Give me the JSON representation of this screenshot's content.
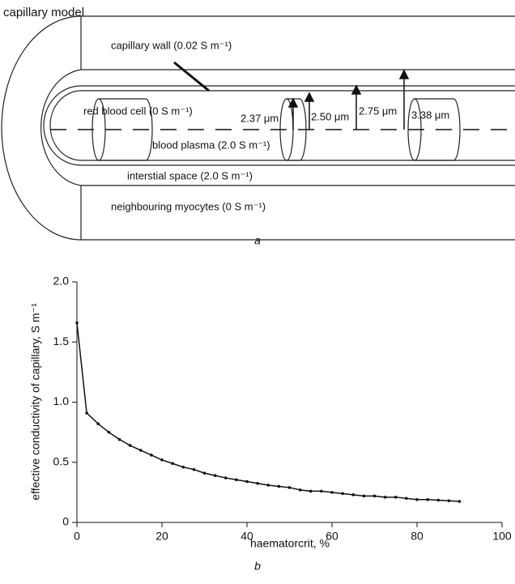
{
  "diagram": {
    "title": "capillary model",
    "labels": {
      "wall": "capillary wall (0.02 S m⁻¹)",
      "rbc": "red blood cell (0 S m⁻¹)",
      "plasma": "blood plasma (2.0 S m⁻¹)",
      "interstitial": "interstial space (2.0 S m⁻¹)",
      "myocytes": "neighbouring myocytes (0 S m⁻¹)"
    },
    "radii": [
      "2.37 μm",
      "2.50 μm",
      "2.75 μm",
      "3.38 μm"
    ],
    "caption": "a"
  },
  "chart_data": {
    "type": "line",
    "x_label": "haematorcrit, %",
    "y_label": "effective conductivity of capillary, S m⁻¹",
    "caption": "b",
    "x": [
      0,
      2.3,
      5,
      7.5,
      10,
      12.5,
      15,
      17.5,
      20,
      22.5,
      25,
      27.5,
      30,
      32.5,
      35,
      37.5,
      40,
      42.5,
      45,
      47.5,
      50,
      52.5,
      55,
      57.5,
      60,
      62.5,
      65,
      67.5,
      70,
      72.5,
      75,
      77.5,
      80,
      82.5,
      85,
      87.5,
      90
    ],
    "values": [
      1.66,
      0.91,
      0.82,
      0.75,
      0.69,
      0.64,
      0.6,
      0.56,
      0.52,
      0.49,
      0.46,
      0.44,
      0.41,
      0.39,
      0.37,
      0.355,
      0.34,
      0.325,
      0.31,
      0.3,
      0.29,
      0.27,
      0.26,
      0.26,
      0.25,
      0.24,
      0.23,
      0.22,
      0.22,
      0.21,
      0.21,
      0.2,
      0.19,
      0.19,
      0.185,
      0.18,
      0.175
    ],
    "color": "#111111",
    "xlim": [
      0,
      100
    ],
    "xticks": [
      0,
      20,
      40,
      60,
      80,
      100
    ],
    "ylim": [
      0,
      2
    ],
    "yticks": [
      0,
      0.5,
      {
        "value": 1,
        "label": "1.0"
      },
      1.5,
      {
        "value": 2,
        "label": "2.0"
      }
    ],
    "grid": false
  }
}
